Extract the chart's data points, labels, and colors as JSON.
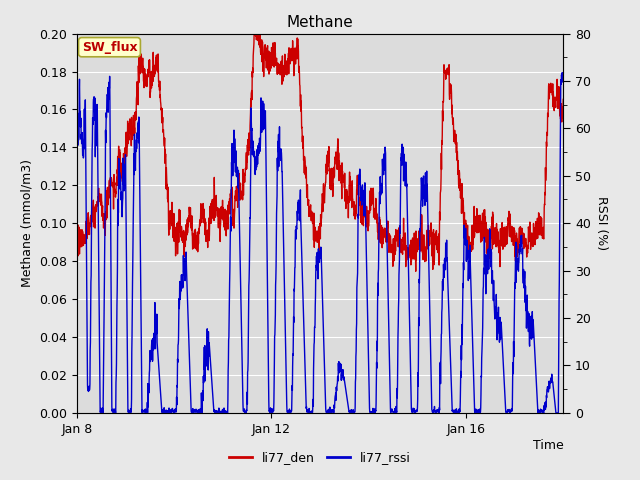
{
  "title": "Methane",
  "ylabel_left": "Methane (mmol/m3)",
  "ylabel_right": "RSSI (%)",
  "xlabel": "Time",
  "ylim_left": [
    0.0,
    0.2
  ],
  "ylim_right": [
    0,
    80
  ],
  "yticks_left": [
    0.0,
    0.02,
    0.04,
    0.06,
    0.08,
    0.1,
    0.12,
    0.14,
    0.16,
    0.18,
    0.2
  ],
  "yticks_right": [
    0,
    10,
    20,
    30,
    40,
    50,
    60,
    70,
    80
  ],
  "xtick_labels": [
    "Jan 8",
    "Jan 12",
    "Jan 16"
  ],
  "xtick_positions": [
    0.0,
    4.0,
    8.0
  ],
  "xmax": 10.0,
  "line1_color": "#cc0000",
  "line2_color": "#0000cc",
  "line1_label": "li77_den",
  "line2_label": "li77_rssi",
  "line_width": 1.0,
  "fig_bg_color": "#e8e8e8",
  "plot_bg_color": "#dcdcdc",
  "grid_color": "#ffffff",
  "annotation_text": "SW_flux",
  "annotation_color": "#bb0000",
  "annotation_bg": "#ffffcc",
  "annotation_border": "#aaa830"
}
